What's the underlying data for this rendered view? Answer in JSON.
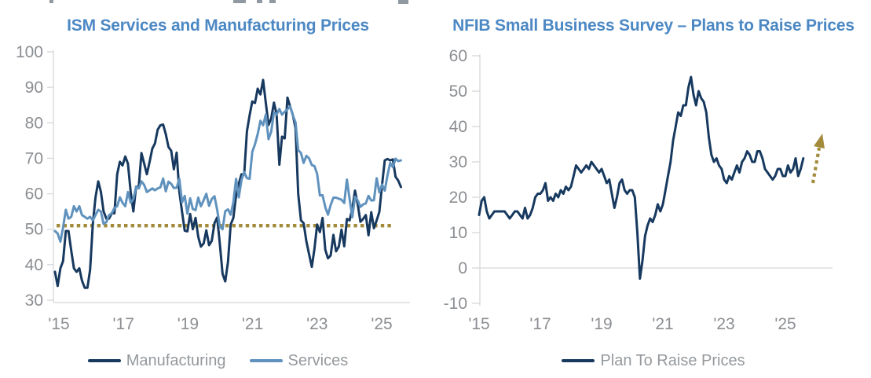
{
  "page": {
    "background": "#ffffff"
  },
  "colors": {
    "title": "#4c88c4",
    "manufacturing": "#17395f",
    "services": "#6092be",
    "gold": "#a38b3c",
    "axis_line": "#d4d7da",
    "tick_label": "#8b8e92",
    "legend_label": "#95999d"
  },
  "chart_data": [
    {
      "type": "line",
      "title": "ISM Services and Manufacturing Prices",
      "x_tick_labels": [
        "'15",
        "'17",
        "'19",
        "'21",
        "'23",
        "'25"
      ],
      "x_start": "2015-01",
      "frequency": "monthly",
      "ylim": [
        30,
        100
      ],
      "yticks": [
        100,
        90,
        80,
        70,
        60,
        50,
        40,
        30
      ],
      "grid": false,
      "reference_line": {
        "value": 51,
        "style": "dotted",
        "color": "#a38b3c"
      },
      "legend_position": "bottom",
      "legend": [
        {
          "name": "Manufacturing",
          "color": "#17395f"
        },
        {
          "name": "Services",
          "color": "#6092be"
        }
      ],
      "series": [
        {
          "name": "Manufacturing",
          "color": "#17395f",
          "values": [
            38,
            34,
            39,
            41,
            49.5,
            49.5,
            44,
            39,
            38,
            39,
            35.5,
            33.5,
            33.5,
            38.5,
            51.5,
            59,
            63.5,
            60.5,
            55,
            53,
            53,
            54.5,
            54.5,
            65.5,
            69,
            68,
            70.5,
            68.5,
            60.5,
            55,
            62,
            62,
            71.5,
            68.5,
            65.5,
            69,
            72.7,
            74.2,
            78.1,
            79.3,
            79.5,
            76.8,
            73.2,
            72.1,
            66.9,
            71.6,
            60.7,
            54.9,
            49.6,
            49.4,
            54.3,
            50,
            53.2,
            47.9,
            45.1,
            46,
            49.7,
            45.5,
            46.7,
            51.7,
            53.3,
            45.9,
            37.4,
            35.3,
            40.8,
            51.3,
            53.2,
            59.5,
            62.8,
            65.5,
            65.4,
            77.6,
            82.1,
            86,
            85.6,
            89.6,
            88,
            92.1,
            85.7,
            79.4,
            81.2,
            85.7,
            82.4,
            68.2,
            76.1,
            75.6,
            87.1,
            84.6,
            82.2,
            78.5,
            60,
            52.5,
            51.7,
            46.6,
            43,
            39.4,
            44.5,
            51.3,
            49.2,
            53.2,
            44.2,
            41.8,
            42.6,
            48.4,
            43.8,
            45.1,
            49.9,
            45.2,
            52.9,
            52.5,
            55.8,
            60.9,
            57,
            52.1,
            52.9,
            54,
            48.3,
            54.8,
            50.3,
            52.5,
            54.9,
            62.4,
            69.4,
            69.8,
            69.4,
            69.7,
            64.8,
            63.7,
            61.9
          ]
        },
        {
          "name": "Services",
          "color": "#6092be",
          "values": [
            49.5,
            48.8,
            46.5,
            50.5,
            55.5,
            53,
            53.5,
            56.5,
            55,
            56.5,
            54,
            53.5,
            53,
            53.5,
            52.5,
            54,
            55.5,
            55,
            51.5,
            52,
            54,
            54.5,
            56,
            56.5,
            59,
            57.5,
            56.5,
            60.5,
            57.5,
            58.5,
            62,
            61.5,
            63.5,
            62.5,
            60.5,
            61,
            61.5,
            61,
            61.5,
            61.8,
            64.3,
            60.7,
            63.4,
            62.8,
            61.6,
            61.7,
            64.2,
            57.6,
            59.4,
            54.4,
            58.7,
            55.7,
            55.4,
            58.9,
            56.5,
            58.2,
            60,
            56.6,
            58.5,
            59.3,
            55.5,
            50.8,
            50,
            55.1,
            55.6,
            54.1,
            57.6,
            64.2,
            59,
            63.9,
            66.1,
            64.4,
            64.2,
            71.8,
            74,
            76.8,
            80.6,
            79.3,
            82.3,
            75.4,
            77.5,
            82.9,
            82.3,
            83.9,
            82.3,
            83.1,
            83.8,
            84.6,
            82.1,
            80.1,
            72.3,
            71.5,
            68.7,
            70.7,
            70,
            68.1,
            67.8,
            65.6,
            59.5,
            59.6,
            56.2,
            54.1,
            56.8,
            58.9,
            58.9,
            58.6,
            58.3,
            57.4,
            64,
            58.6,
            53.4,
            59.2,
            58.1,
            56.3,
            57,
            57.3,
            59.4,
            58.1,
            58.2,
            64.4,
            60.4,
            62.6,
            60.9,
            65.1,
            68.7,
            67.5,
            69.9,
            69.2,
            69.4
          ]
        }
      ]
    },
    {
      "type": "line",
      "title": "NFIB Small Business Survey – Plans to Raise Prices",
      "x_tick_labels": [
        "'15",
        "'17",
        "'19",
        "'21",
        "'23",
        "'25"
      ],
      "x_start": "2015-01",
      "frequency": "monthly",
      "ylim": [
        -10,
        60
      ],
      "yticks": [
        60,
        50,
        40,
        30,
        20,
        10,
        0,
        -10
      ],
      "grid": false,
      "zero_line": true,
      "annotation_arrow": {
        "style": "dotted",
        "direction": "up",
        "color": "#a38b3c"
      },
      "legend_position": "bottom",
      "legend": [
        {
          "name": "Plan To Raise Prices",
          "color": "#17395f"
        }
      ],
      "series": [
        {
          "name": "Plan To Raise Prices",
          "color": "#17395f",
          "values": [
            15,
            19,
            20,
            16,
            14,
            15,
            16,
            16,
            16,
            16,
            16,
            15,
            14,
            15,
            16,
            16,
            15,
            14,
            17,
            14,
            15,
            17,
            20,
            21,
            21,
            22,
            24,
            19,
            20,
            19,
            21,
            20,
            22,
            21,
            23,
            22,
            23,
            26,
            29,
            28,
            27,
            28,
            29,
            28,
            30,
            29,
            28,
            27,
            28,
            26,
            24,
            25,
            21,
            17,
            20,
            24,
            25,
            22,
            21,
            22,
            22,
            20,
            10,
            -3,
            2,
            9,
            12,
            14,
            13,
            15,
            18,
            16,
            18,
            22,
            26,
            30,
            36,
            40,
            44,
            43,
            46,
            46,
            51,
            54,
            49,
            46,
            50,
            48,
            47,
            44,
            37,
            32,
            30,
            31,
            29,
            28,
            25,
            24,
            26,
            25,
            27,
            29,
            27,
            30,
            31,
            33,
            32,
            30,
            30,
            33,
            33,
            31,
            28,
            27,
            26,
            25,
            26,
            28,
            28,
            26,
            26,
            29,
            27,
            28,
            31,
            26,
            28,
            31
          ]
        }
      ]
    }
  ]
}
